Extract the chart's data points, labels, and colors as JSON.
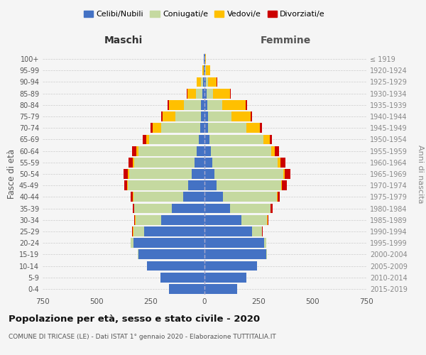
{
  "age_groups": [
    "0-4",
    "5-9",
    "10-14",
    "15-19",
    "20-24",
    "25-29",
    "30-34",
    "35-39",
    "40-44",
    "45-49",
    "50-54",
    "55-59",
    "60-64",
    "65-69",
    "70-74",
    "75-79",
    "80-84",
    "85-89",
    "90-94",
    "95-99",
    "100+"
  ],
  "birth_years": [
    "2015-2019",
    "2010-2014",
    "2005-2009",
    "2000-2004",
    "1995-1999",
    "1990-1994",
    "1985-1989",
    "1980-1984",
    "1975-1979",
    "1970-1974",
    "1965-1969",
    "1960-1964",
    "1955-1959",
    "1950-1954",
    "1945-1949",
    "1940-1944",
    "1935-1939",
    "1930-1934",
    "1925-1929",
    "1920-1924",
    "≤ 1919"
  ],
  "colors": {
    "celibi": "#4472c4",
    "coniugati": "#c5d9a0",
    "vedovi": "#ffc000",
    "divorziati": "#cc0000"
  },
  "maschi": {
    "celibi": [
      165,
      205,
      265,
      305,
      330,
      280,
      200,
      150,
      100,
      75,
      60,
      45,
      35,
      25,
      20,
      15,
      15,
      10,
      5,
      2,
      2
    ],
    "coniugati": [
      0,
      0,
      0,
      5,
      12,
      50,
      120,
      175,
      230,
      280,
      290,
      280,
      270,
      230,
      180,
      120,
      80,
      30,
      10,
      2,
      0
    ],
    "vedovi": [
      0,
      0,
      0,
      0,
      0,
      2,
      2,
      2,
      2,
      3,
      5,
      8,
      10,
      15,
      40,
      60,
      70,
      40,
      20,
      5,
      2
    ],
    "divorziati": [
      0,
      0,
      0,
      0,
      0,
      2,
      3,
      5,
      10,
      15,
      20,
      18,
      20,
      15,
      10,
      5,
      5,
      3,
      2,
      0,
      0
    ]
  },
  "femmine": {
    "celibi": [
      150,
      195,
      245,
      285,
      275,
      220,
      170,
      120,
      85,
      55,
      45,
      35,
      28,
      22,
      18,
      15,
      12,
      10,
      5,
      2,
      2
    ],
    "coniugati": [
      0,
      0,
      0,
      3,
      10,
      45,
      120,
      185,
      250,
      300,
      320,
      305,
      280,
      250,
      175,
      110,
      70,
      30,
      12,
      3,
      0
    ],
    "vedovi": [
      0,
      0,
      0,
      0,
      0,
      2,
      2,
      2,
      3,
      5,
      8,
      12,
      18,
      30,
      65,
      90,
      110,
      80,
      40,
      20,
      5
    ],
    "divorziati": [
      0,
      0,
      0,
      0,
      0,
      2,
      5,
      8,
      12,
      20,
      25,
      22,
      20,
      12,
      8,
      5,
      5,
      3,
      2,
      0,
      0
    ]
  },
  "title": "Popolazione per età, sesso e stato civile - 2020",
  "subtitle": "COMUNE DI TRICASE (LE) - Dati ISTAT 1° gennaio 2020 - Elaborazione TUTTITALIA.IT",
  "ylabel_left": "Fasce di età",
  "ylabel_right": "Anni di nascita",
  "xlabel_left": "Maschi",
  "xlabel_right": "Femmine",
  "xlim": 750,
  "background_color": "#f5f5f5",
  "grid_color": "#cccccc"
}
